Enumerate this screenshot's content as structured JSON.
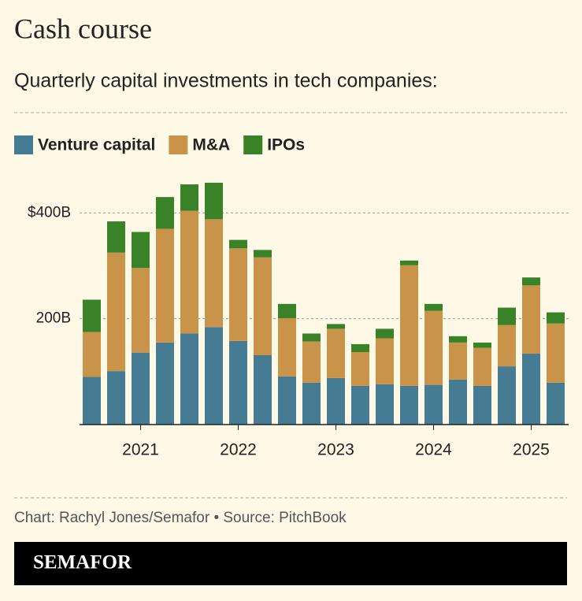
{
  "chart_data": {
    "type": "stacked-bar",
    "title": "Cash course",
    "subtitle": "Quarterly capital investments in tech companies:",
    "categories": [
      null,
      null,
      "2021",
      null,
      null,
      null,
      "2022",
      null,
      null,
      null,
      "2023",
      null,
      null,
      null,
      "2024",
      null,
      null,
      null,
      "2025",
      null
    ],
    "series": [
      {
        "name": "Venture capital",
        "color": "#457b93",
        "values": [
          90,
          101,
          136,
          155,
          172,
          184,
          158,
          131,
          91,
          79,
          88,
          73,
          76,
          73,
          75,
          85,
          73,
          110,
          134,
          79
        ]
      },
      {
        "name": "M&A",
        "color": "#c9944a",
        "values": [
          85,
          224,
          160,
          215,
          232,
          204,
          175,
          185,
          110,
          78,
          93,
          64,
          87,
          228,
          140,
          70,
          72,
          78,
          129,
          112
        ]
      },
      {
        "name": "IPOs",
        "color": "#3a8228",
        "values": [
          61,
          59,
          68,
          60,
          50,
          69,
          16,
          14,
          27,
          15,
          9,
          15,
          18,
          9,
          13,
          12,
          10,
          33,
          15,
          21
        ]
      }
    ],
    "ylim": [
      0,
      460
    ],
    "yticks": [
      {
        "value": 200,
        "label": "200B"
      },
      {
        "value": 400,
        "label": "$400B"
      }
    ],
    "grid": true
  },
  "footer": {
    "credit": "Chart: Rachyl Jones/Semafor • Source: PitchBook",
    "logo": "SEMAFOR"
  }
}
